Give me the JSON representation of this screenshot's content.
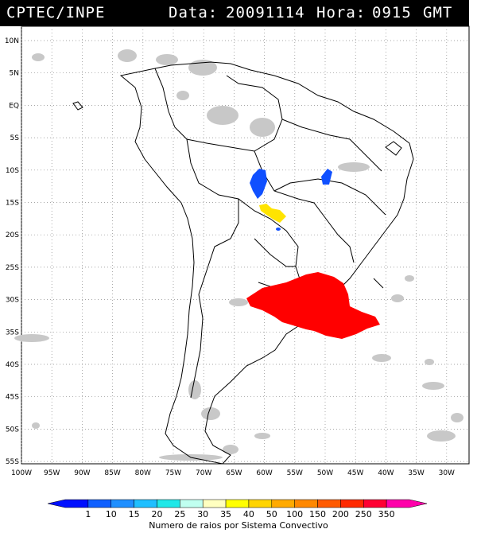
{
  "header": {
    "source": "CPTEC/INPE",
    "date_label": "Data:",
    "date": "20091114",
    "hour_label": "Hora:",
    "hour": "0915",
    "timezone": "GMT"
  },
  "map": {
    "lat_labels": [
      "10N",
      "5N",
      "EQ",
      "5S",
      "10S",
      "15S",
      "20S",
      "25S",
      "30S",
      "35S",
      "40S",
      "45S",
      "50S",
      "55S"
    ],
    "lon_labels": [
      "100W",
      "95W",
      "90W",
      "85W",
      "80W",
      "75W",
      "70W",
      "65W",
      "60W",
      "55W",
      "50W",
      "45W",
      "40W",
      "35W",
      "30W"
    ]
  },
  "legend": {
    "title": "Numero de raios por Sistema Convectivo",
    "values": [
      "1",
      "10",
      "15",
      "20",
      "25",
      "30",
      "35",
      "40",
      "50",
      "100",
      "150",
      "200",
      "250",
      "350"
    ],
    "colors": [
      "#0010ff",
      "#1060ff",
      "#1f8fff",
      "#1fbfff",
      "#20e8e8",
      "#c0fff0",
      "#ffffc0",
      "#ffff00",
      "#ffd400",
      "#ffaa00",
      "#ff8800",
      "#ff5a00",
      "#ff2a00",
      "#ff0033",
      "#ff00aa"
    ]
  },
  "systems": [
    {
      "name": "convective-system-large",
      "color": "#ff0000",
      "level": "350"
    },
    {
      "name": "convective-system-medium",
      "color": "#ffe400",
      "level": "40"
    },
    {
      "name": "convective-system-small",
      "color": "#1050ff",
      "level": "10"
    }
  ]
}
